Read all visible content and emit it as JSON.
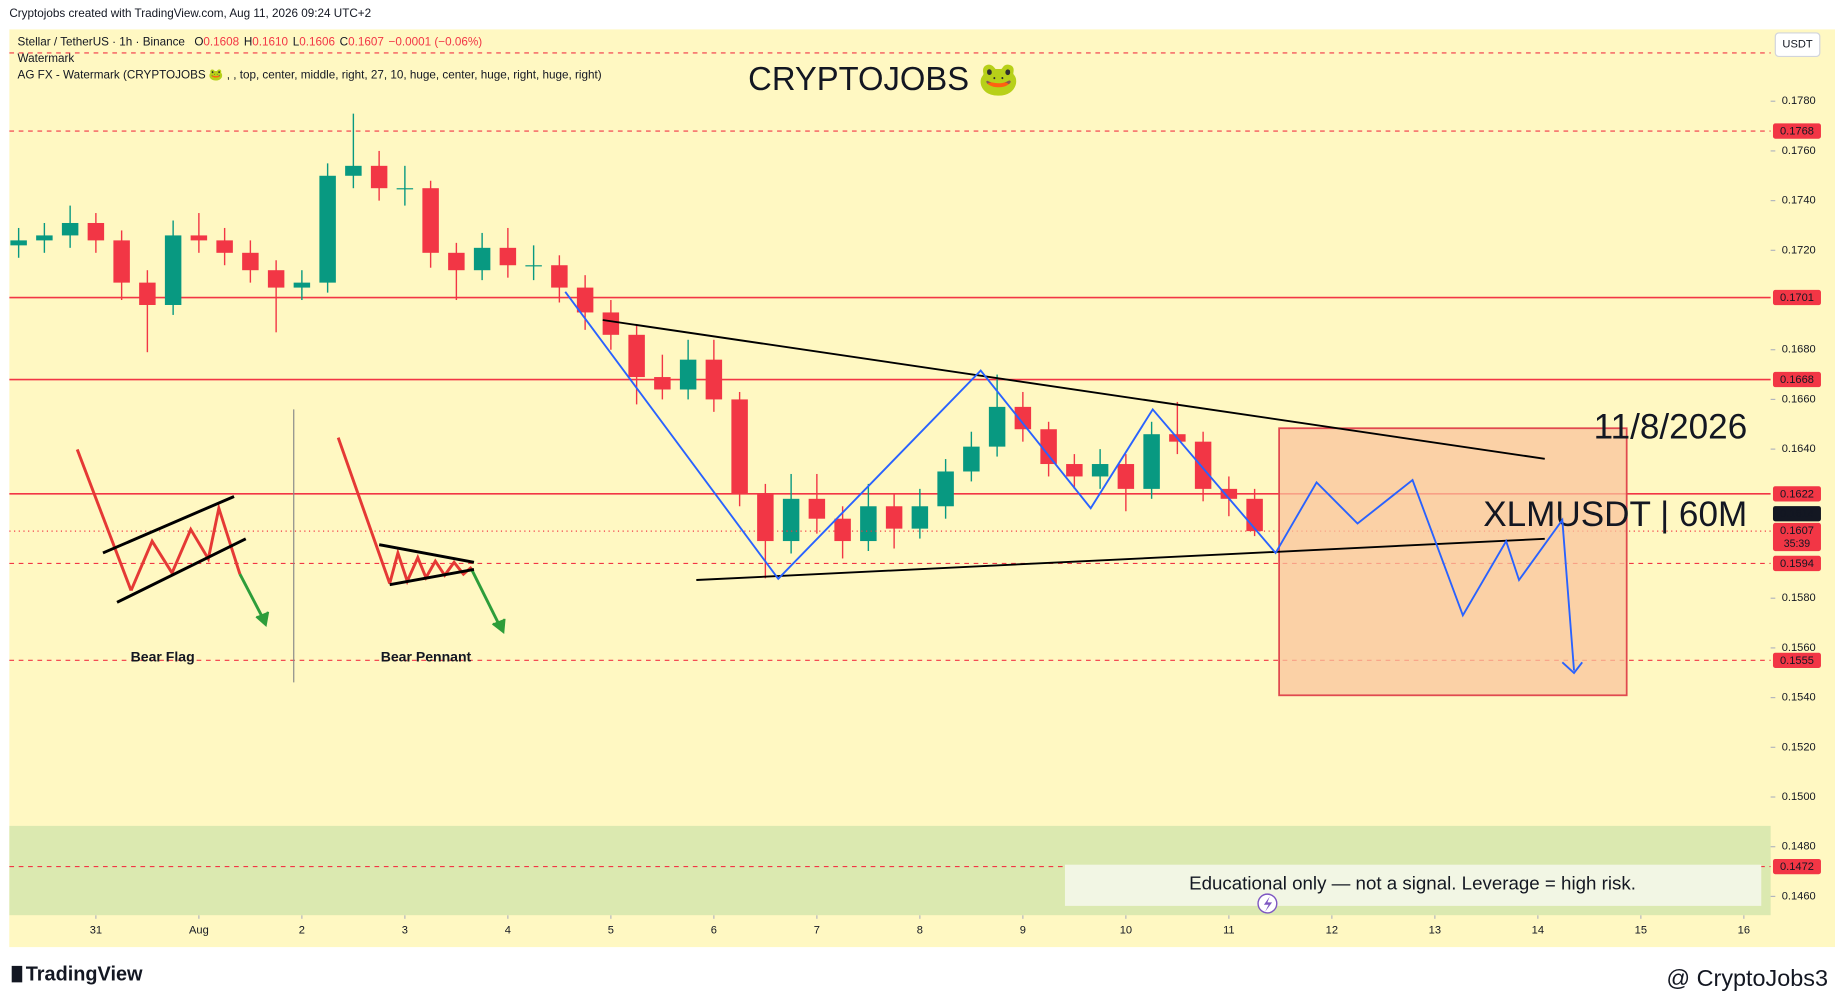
{
  "header": {
    "credit": "Cryptojobs created with TradingView.com, Aug 11, 2026 09:24 UTC+2",
    "symbol": "Stellar / TetherUS · 1h · Binance",
    "ohlc": [
      {
        "label": "O",
        "value": "0.1608"
      },
      {
        "label": "H",
        "value": "0.1610"
      },
      {
        "label": "L",
        "value": "0.1606"
      },
      {
        "label": "C",
        "value": "0.1607"
      }
    ],
    "change": "−0.0001 (−0.06%)",
    "indicator": "Watermark",
    "indicator_settings": "AG FX - Watermark (CRYPTOJOBS 🐸 , , top, center, middle, right, 27, 10, huge, center, huge, right, huge, right)"
  },
  "chart_data": {
    "type": "candlestick",
    "currency": "USDT",
    "x": [
      -0.75,
      -0.5,
      -0.25,
      0,
      0.25,
      0.5,
      0.75,
      1,
      1.25,
      1.5,
      1.75,
      2,
      2.25,
      2.5,
      2.75,
      3,
      3.25,
      3.5,
      3.75,
      4,
      4.25,
      4.5,
      4.75,
      5,
      5.25,
      5.5,
      5.75,
      6,
      6.25,
      6.5,
      6.75,
      7,
      7.25,
      7.5,
      7.75,
      8,
      8.25,
      8.5,
      8.75,
      9,
      9.25,
      9.5,
      9.75,
      10,
      10.25,
      10.5,
      10.75,
      11,
      11.25
    ],
    "open": [
      0.1722,
      0.1724,
      0.1726,
      0.1731,
      0.1724,
      0.1707,
      0.1698,
      0.1726,
      0.1724,
      0.1719,
      0.1712,
      0.1705,
      0.1707,
      0.175,
      0.1754,
      0.1745,
      0.1745,
      0.1719,
      0.1712,
      0.1721,
      0.1714,
      0.1714,
      0.1705,
      0.1695,
      0.1686,
      0.1669,
      0.1664,
      0.1676,
      0.166,
      0.1622,
      0.1603,
      0.162,
      0.1612,
      0.1603,
      0.1617,
      0.1608,
      0.1617,
      0.1631,
      0.1641,
      0.1657,
      0.1648,
      0.1634,
      0.1629,
      0.1634,
      0.1624,
      0.1646,
      0.1643,
      0.1624,
      0.162
    ],
    "high": [
      0.1729,
      0.1731,
      0.1738,
      0.1735,
      0.1728,
      0.1712,
      0.1732,
      0.1735,
      0.1729,
      0.1724,
      0.1716,
      0.1712,
      0.1755,
      0.1775,
      0.176,
      0.1754,
      0.1748,
      0.1723,
      0.1727,
      0.1729,
      0.1722,
      0.1718,
      0.171,
      0.17,
      0.169,
      0.1678,
      0.1684,
      0.1684,
      0.1663,
      0.1626,
      0.163,
      0.163,
      0.1617,
      0.1626,
      0.1622,
      0.1624,
      0.1636,
      0.1647,
      0.167,
      0.1663,
      0.1651,
      0.1638,
      0.164,
      0.1638,
      0.1651,
      0.1659,
      0.1647,
      0.1629,
      0.1624
    ],
    "low": [
      0.1717,
      0.1719,
      0.1721,
      0.1719,
      0.17,
      0.1679,
      0.1694,
      0.1719,
      0.1714,
      0.1707,
      0.1687,
      0.17,
      0.1703,
      0.1745,
      0.174,
      0.1738,
      0.1713,
      0.17,
      0.1708,
      0.1709,
      0.1708,
      0.1699,
      0.1688,
      0.168,
      0.1658,
      0.166,
      0.166,
      0.1655,
      0.1617,
      0.1588,
      0.1598,
      0.1606,
      0.1596,
      0.1599,
      0.16,
      0.1604,
      0.1612,
      0.1627,
      0.1637,
      0.1643,
      0.1629,
      0.1624,
      0.1624,
      0.1615,
      0.162,
      0.1638,
      0.1619,
      0.1613,
      0.1605
    ],
    "close": [
      0.1724,
      0.1726,
      0.1731,
      0.1724,
      0.1707,
      0.1698,
      0.1726,
      0.1724,
      0.1719,
      0.1712,
      0.1705,
      0.1707,
      0.175,
      0.1754,
      0.1745,
      0.1745,
      0.1719,
      0.1712,
      0.1721,
      0.1714,
      0.1714,
      0.1705,
      0.1695,
      0.1686,
      0.1669,
      0.1664,
      0.1676,
      0.166,
      0.1622,
      0.1603,
      0.162,
      0.1612,
      0.1603,
      0.1617,
      0.1608,
      0.1617,
      0.1631,
      0.1641,
      0.1657,
      0.1648,
      0.1634,
      0.1629,
      0.1634,
      0.1624,
      0.1646,
      0.1643,
      0.1624,
      0.162,
      0.1607
    ],
    "up_color": "#089981",
    "down_color": "#f23645",
    "xlim": [
      -0.84,
      16.26
    ],
    "ylim": [
      0.14524,
      0.18089
    ],
    "xticks": [
      {
        "value": 0,
        "label": "31"
      },
      {
        "value": 1,
        "label": "Aug"
      },
      2,
      3,
      4,
      5,
      6,
      7,
      8,
      9,
      10,
      11,
      12,
      13,
      14,
      15,
      16
    ],
    "yticks": [
      {
        "value": 0.146,
        "label": "0.1460"
      },
      {
        "value": 0.148,
        "label": "0.1480"
      },
      {
        "value": 0.15,
        "label": "0.1500"
      },
      {
        "value": 0.152,
        "label": "0.1520"
      },
      {
        "value": 0.154,
        "label": "0.1540"
      },
      {
        "value": 0.156,
        "label": "0.1560"
      },
      {
        "value": 0.158,
        "label": "0.1580"
      },
      {
        "value": 0.164,
        "label": "0.1640"
      },
      {
        "value": 0.166,
        "label": "0.1660"
      },
      {
        "value": 0.168,
        "label": "0.1680"
      },
      {
        "value": 0.172,
        "label": "0.1720"
      },
      {
        "value": 0.174,
        "label": "0.1740"
      },
      {
        "value": 0.176,
        "label": "0.1760"
      },
      {
        "value": 0.178,
        "label": "0.1780"
      }
    ],
    "grid": false,
    "level_color": "#f23645",
    "levels": [
      {
        "value": 0.1768,
        "style": "dashed"
      },
      {
        "value": 0.1701,
        "style": "solid"
      },
      {
        "value": 0.1668,
        "style": "solid"
      },
      {
        "value": 0.1622,
        "style": "solid"
      },
      {
        "value": 0.1594,
        "style": "dashed"
      },
      {
        "value": 0.1555,
        "style": "dashed"
      },
      {
        "value": 0.1472,
        "style": "dashed"
      }
    ],
    "last_price": 0.1607,
    "countdown": "35:39",
    "marker_price": 0.1614
  },
  "annotations": {
    "watermark_title": "CRYPTOJOBS 🐸",
    "date": "11/8/2026",
    "pair": "XLMUSDT | 60M",
    "pattern_labels": [
      "Bear Flag",
      "Bear Pennant"
    ],
    "disclaimer": "Educational only — not a signal. Leverage  = high risk."
  },
  "footer": {
    "brand": "TradingView",
    "source": "@ CryptoJobs3"
  }
}
